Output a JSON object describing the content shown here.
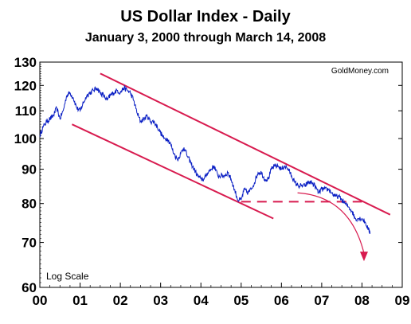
{
  "chart_data": {
    "type": "line",
    "title": "US Dollar Index - Daily",
    "subtitle": "January 3, 2000 through March 14, 2008",
    "watermark": "GoldMoney.com",
    "scale_note": "Log Scale",
    "y_scale": "log",
    "ylim": [
      60,
      130
    ],
    "xlim": [
      2000.0,
      2009.0
    ],
    "grid": false,
    "y_ticks": [
      60,
      70,
      80,
      90,
      100,
      110,
      120,
      130
    ],
    "y_tick_labels": [
      "60",
      "70",
      "80",
      "90",
      "100",
      "110",
      "120",
      "130"
    ],
    "x_ticks": [
      2000,
      2001,
      2002,
      2003,
      2004,
      2005,
      2006,
      2007,
      2008,
      2009
    ],
    "x_tick_labels": [
      "00",
      "01",
      "02",
      "03",
      "04",
      "05",
      "06",
      "07",
      "08",
      "09"
    ],
    "colors": {
      "series": "#0a1fc4",
      "trend": "#d81b4f",
      "axis": "#000000"
    },
    "series": [
      {
        "values_x": [
          2000.0,
          2000.08,
          2000.17,
          2000.25,
          2000.33,
          2000.42,
          2000.5,
          2000.58,
          2000.67,
          2000.75,
          2000.83,
          2000.92,
          2001.0,
          2001.08,
          2001.17,
          2001.25,
          2001.33,
          2001.42,
          2001.5,
          2001.58,
          2001.67,
          2001.75,
          2001.83,
          2001.92,
          2002.0,
          2002.08,
          2002.17,
          2002.25,
          2002.33,
          2002.42,
          2002.5,
          2002.58,
          2002.67,
          2002.75,
          2002.83,
          2002.92,
          2003.0,
          2003.08,
          2003.17,
          2003.25,
          2003.33,
          2003.42,
          2003.5,
          2003.58,
          2003.67,
          2003.75,
          2003.83,
          2003.92,
          2004.0,
          2004.08,
          2004.17,
          2004.25,
          2004.33,
          2004.42,
          2004.5,
          2004.58,
          2004.67,
          2004.75,
          2004.83,
          2004.92,
          2005.0,
          2005.08,
          2005.17,
          2005.25,
          2005.33,
          2005.42,
          2005.5,
          2005.58,
          2005.67,
          2005.75,
          2005.83,
          2005.92,
          2006.0,
          2006.08,
          2006.17,
          2006.25,
          2006.33,
          2006.42,
          2006.5,
          2006.58,
          2006.67,
          2006.75,
          2006.83,
          2006.92,
          2007.0,
          2007.08,
          2007.17,
          2007.25,
          2007.33,
          2007.42,
          2007.5,
          2007.58,
          2007.67,
          2007.75,
          2007.83,
          2007.92,
          2008.0,
          2008.08,
          2008.17,
          2008.2
        ],
        "values_y": [
          101,
          104,
          106,
          107,
          108,
          111,
          107,
          110,
          116,
          117,
          115,
          111,
          110,
          113,
          116,
          117,
          118,
          119,
          117,
          116,
          114,
          116,
          117,
          118,
          117,
          119,
          118,
          117,
          114,
          109,
          106,
          107,
          108,
          106,
          106,
          104,
          102,
          100,
          100,
          98,
          95,
          93,
          95,
          97,
          94,
          92,
          90,
          88,
          87,
          87,
          89,
          90,
          91,
          88,
          88,
          88,
          89,
          87,
          84,
          81,
          81,
          84,
          83,
          84,
          86,
          89,
          89,
          87,
          87,
          90,
          91,
          91,
          90,
          91,
          90,
          88,
          86,
          85,
          85,
          85,
          86,
          86,
          85,
          83,
          84,
          84,
          84,
          83,
          82,
          82,
          81,
          80,
          79,
          78,
          76,
          76,
          76,
          75,
          73,
          72.5
        ]
      }
    ],
    "annotations": [
      {
        "kind": "trend_line_upper",
        "x": [
          2001.5,
          2008.7
        ],
        "y": [
          125,
          77
        ]
      },
      {
        "kind": "trend_line_lower",
        "x": [
          2000.8,
          2005.8
        ],
        "y": [
          105,
          76
        ]
      },
      {
        "kind": "support_dashed",
        "x": [
          2005.0,
          2008.0
        ],
        "y": [
          80.5,
          80.5
        ]
      },
      {
        "kind": "curved_arrow",
        "x": [
          2006.4,
          2007.7,
          2008.05
        ],
        "y": [
          83,
          82,
          66
        ]
      }
    ]
  }
}
